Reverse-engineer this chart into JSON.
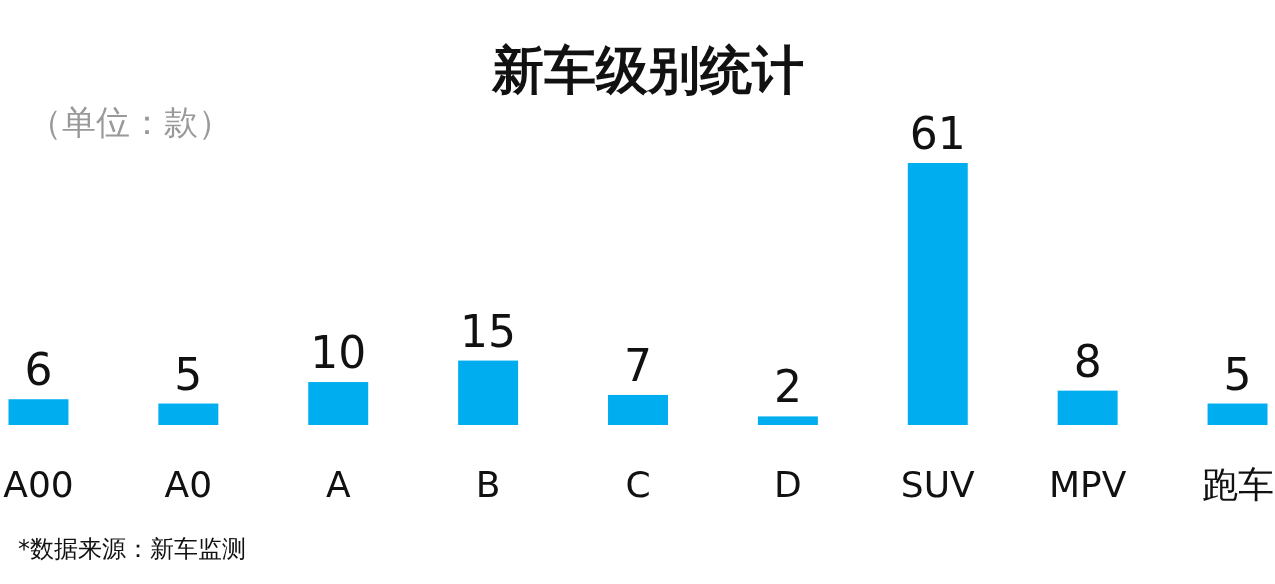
{
  "chart_data": {
    "type": "bar",
    "title": "新车级别统计",
    "subtitle": "（单位：款）",
    "categories": [
      "A00",
      "A0",
      "A",
      "B",
      "C",
      "D",
      "SUV",
      "MPV",
      "跑车"
    ],
    "values": [
      6,
      5,
      10,
      15,
      7,
      2,
      61,
      8,
      5
    ],
    "color": "#00aeef",
    "data_labels": true,
    "annotations": [
      "*数据来源：新车监测"
    ]
  }
}
